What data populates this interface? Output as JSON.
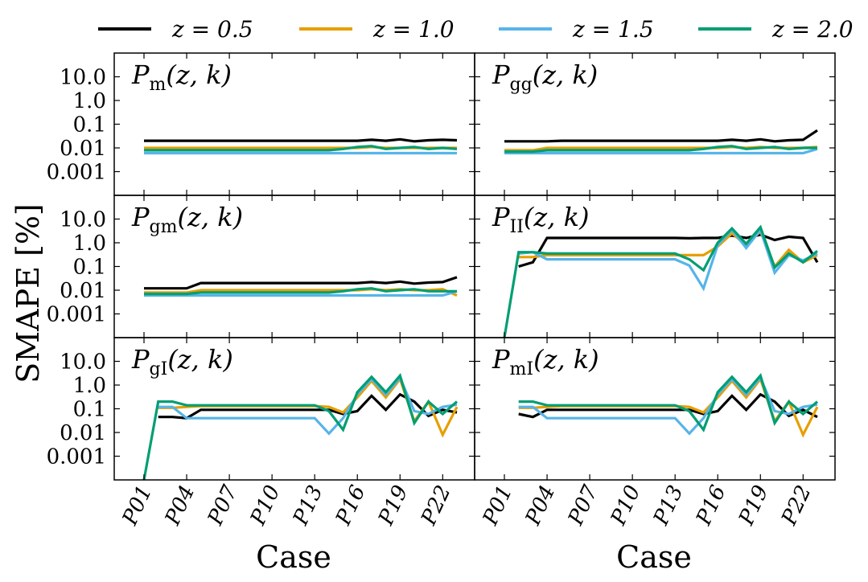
{
  "chart_data": {
    "type": "line",
    "ylabel": "SMAPE [%]",
    "xlabel": "Case",
    "yscale": "log",
    "ylim": [
      0.0001,
      100
    ],
    "yticks": [
      {
        "value": 10,
        "label": "10.0"
      },
      {
        "value": 1,
        "label": "1.0"
      },
      {
        "value": 0.1,
        "label": "0.1"
      },
      {
        "value": 0.01,
        "label": "0.01"
      },
      {
        "value": 0.001,
        "label": "0.001"
      }
    ],
    "cases": [
      "P01",
      "P02",
      "P03",
      "P04",
      "P05",
      "P06",
      "P07",
      "P08",
      "P09",
      "P10",
      "P11",
      "P12",
      "P13",
      "P14",
      "P15",
      "P16",
      "P17",
      "P18",
      "P19",
      "P20",
      "P21",
      "P22",
      "P23"
    ],
    "xtick_labels": [
      "P01",
      "P04",
      "P07",
      "P10",
      "P13",
      "P16",
      "P19",
      "P22"
    ],
    "legend": [
      {
        "label": "z = 0.5",
        "color": "#000000"
      },
      {
        "label": "z = 1.0",
        "color": "#E69F00"
      },
      {
        "label": "z = 1.5",
        "color": "#56B4E9"
      },
      {
        "label": "z = 2.0",
        "color": "#009E73"
      }
    ],
    "panels": [
      {
        "title": "P_m(z, k)",
        "base": "P",
        "sub": "m",
        "series": [
          {
            "name": "z = 0.5",
            "values": [
              0.02,
              0.02,
              0.02,
              0.02,
              0.02,
              0.02,
              0.02,
              0.02,
              0.02,
              0.02,
              0.02,
              0.02,
              0.02,
              0.02,
              0.02,
              0.02,
              0.022,
              0.02,
              0.023,
              0.019,
              0.021,
              0.022,
              0.021
            ]
          },
          {
            "name": "z = 1.0",
            "values": [
              0.01,
              0.01,
              0.01,
              0.01,
              0.01,
              0.01,
              0.01,
              0.01,
              0.01,
              0.01,
              0.01,
              0.01,
              0.01,
              0.01,
              0.01,
              0.01,
              0.011,
              0.01,
              0.01,
              0.01,
              0.01,
              0.01,
              0.01
            ]
          },
          {
            "name": "z = 1.5",
            "values": [
              0.006,
              0.006,
              0.006,
              0.006,
              0.006,
              0.006,
              0.006,
              0.006,
              0.006,
              0.006,
              0.006,
              0.006,
              0.006,
              0.006,
              0.006,
              0.006,
              0.006,
              0.006,
              0.006,
              0.006,
              0.006,
              0.006,
              0.006
            ]
          },
          {
            "name": "z = 2.0",
            "values": [
              0.008,
              0.008,
              0.008,
              0.008,
              0.008,
              0.008,
              0.008,
              0.008,
              0.008,
              0.008,
              0.008,
              0.008,
              0.008,
              0.008,
              0.009,
              0.011,
              0.012,
              0.009,
              0.01,
              0.011,
              0.009,
              0.01,
              0.009
            ]
          }
        ]
      },
      {
        "title": "P_gg(z, k)",
        "base": "P",
        "sub": "gg",
        "series": [
          {
            "name": "z = 0.5",
            "values": [
              0.019,
              0.019,
              0.019,
              0.019,
              0.02,
              0.02,
              0.02,
              0.02,
              0.02,
              0.02,
              0.02,
              0.02,
              0.02,
              0.02,
              0.02,
              0.02,
              0.022,
              0.02,
              0.023,
              0.019,
              0.021,
              0.022,
              0.055
            ]
          },
          {
            "name": "z = 1.0",
            "values": [
              0.008,
              0.008,
              0.008,
              0.01,
              0.01,
              0.01,
              0.01,
              0.01,
              0.01,
              0.01,
              0.01,
              0.01,
              0.01,
              0.01,
              0.01,
              0.01,
              0.011,
              0.01,
              0.011,
              0.01,
              0.01,
              0.01,
              0.011
            ]
          },
          {
            "name": "z = 1.5",
            "values": [
              0.006,
              0.006,
              0.006,
              0.006,
              0.006,
              0.006,
              0.006,
              0.006,
              0.006,
              0.006,
              0.006,
              0.006,
              0.006,
              0.006,
              0.006,
              0.006,
              0.006,
              0.006,
              0.006,
              0.006,
              0.006,
              0.006,
              0.009
            ]
          },
          {
            "name": "z = 2.0",
            "values": [
              0.007,
              0.007,
              0.007,
              0.008,
              0.008,
              0.008,
              0.008,
              0.008,
              0.008,
              0.008,
              0.008,
              0.008,
              0.008,
              0.008,
              0.009,
              0.011,
              0.012,
              0.009,
              0.01,
              0.011,
              0.009,
              0.01,
              0.01
            ]
          }
        ]
      },
      {
        "title": "P_gm(z, k)",
        "base": "P",
        "sub": "gm",
        "series": [
          {
            "name": "z = 0.5",
            "values": [
              0.012,
              0.012,
              0.012,
              0.012,
              0.02,
              0.02,
              0.02,
              0.02,
              0.02,
              0.02,
              0.02,
              0.02,
              0.02,
              0.02,
              0.02,
              0.02,
              0.022,
              0.02,
              0.023,
              0.019,
              0.021,
              0.022,
              0.035
            ]
          },
          {
            "name": "z = 1.0",
            "values": [
              0.008,
              0.008,
              0.008,
              0.008,
              0.01,
              0.01,
              0.01,
              0.01,
              0.01,
              0.01,
              0.01,
              0.01,
              0.01,
              0.01,
              0.01,
              0.01,
              0.011,
              0.01,
              0.011,
              0.01,
              0.01,
              0.011,
              0.006
            ]
          },
          {
            "name": "z = 1.5",
            "values": [
              0.006,
              0.006,
              0.006,
              0.006,
              0.006,
              0.006,
              0.006,
              0.006,
              0.006,
              0.006,
              0.006,
              0.006,
              0.006,
              0.006,
              0.006,
              0.006,
              0.006,
              0.006,
              0.006,
              0.006,
              0.006,
              0.006,
              0.009
            ]
          },
          {
            "name": "z = 2.0",
            "values": [
              0.007,
              0.007,
              0.007,
              0.007,
              0.008,
              0.008,
              0.008,
              0.008,
              0.008,
              0.008,
              0.008,
              0.008,
              0.008,
              0.008,
              0.009,
              0.011,
              0.012,
              0.009,
              0.01,
              0.011,
              0.009,
              0.009,
              0.009
            ]
          }
        ]
      },
      {
        "title": "P_II(z, k)",
        "base": "P",
        "sub": "II",
        "series": [
          {
            "name": "z = 0.5",
            "values": [
              null,
              0.1,
              0.15,
              1.6,
              1.6,
              1.6,
              1.6,
              1.6,
              1.6,
              1.6,
              1.6,
              1.6,
              1.6,
              1.55,
              1.6,
              1.6,
              2.0,
              1.6,
              2.2,
              1.3,
              1.8,
              1.6,
              0.15
            ]
          },
          {
            "name": "z = 1.0",
            "values": [
              null,
              0.25,
              0.25,
              0.3,
              0.3,
              0.3,
              0.3,
              0.3,
              0.3,
              0.3,
              0.3,
              0.3,
              0.3,
              0.3,
              0.3,
              0.7,
              2.5,
              0.8,
              3.0,
              0.1,
              0.5,
              0.15,
              0.3
            ]
          },
          {
            "name": "z = 1.5",
            "values": [
              null,
              0.35,
              0.4,
              0.2,
              0.2,
              0.2,
              0.2,
              0.2,
              0.2,
              0.2,
              0.2,
              0.2,
              0.2,
              0.11,
              0.012,
              0.8,
              3.5,
              0.6,
              3.5,
              0.055,
              0.3,
              0.18,
              0.35
            ]
          },
          {
            "name": "z = 2.0",
            "values": [
              0.0001,
              0.4,
              0.4,
              0.35,
              0.35,
              0.35,
              0.35,
              0.35,
              0.35,
              0.35,
              0.35,
              0.35,
              0.35,
              0.2,
              0.07,
              1.0,
              4.0,
              0.9,
              4.5,
              0.09,
              0.35,
              0.15,
              0.45
            ]
          }
        ]
      },
      {
        "title": "P_gI(z, k)",
        "base": "P",
        "sub": "gI",
        "series": [
          {
            "name": "z = 0.5",
            "values": [
              null,
              0.045,
              0.045,
              0.04,
              0.09,
              0.09,
              0.09,
              0.09,
              0.09,
              0.09,
              0.09,
              0.09,
              0.09,
              0.09,
              0.06,
              0.08,
              0.35,
              0.09,
              0.4,
              0.2,
              0.05,
              0.09,
              0.07
            ]
          },
          {
            "name": "z = 1.0",
            "values": [
              null,
              0.11,
              0.11,
              0.12,
              0.13,
              0.13,
              0.13,
              0.13,
              0.13,
              0.13,
              0.13,
              0.13,
              0.13,
              0.12,
              0.07,
              0.3,
              1.5,
              0.3,
              1.8,
              0.03,
              0.2,
              0.008,
              0.12
            ]
          },
          {
            "name": "z = 1.5",
            "values": [
              null,
              0.12,
              0.12,
              0.04,
              0.04,
              0.04,
              0.04,
              0.04,
              0.04,
              0.04,
              0.04,
              0.04,
              0.04,
              0.009,
              0.04,
              0.4,
              1.8,
              0.4,
              2.0,
              0.08,
              0.06,
              0.12,
              0.15
            ]
          },
          {
            "name": "z = 2.0",
            "values": [
              0.0001,
              0.2,
              0.2,
              0.14,
              0.14,
              0.14,
              0.14,
              0.14,
              0.14,
              0.14,
              0.14,
              0.14,
              0.14,
              0.08,
              0.013,
              0.5,
              2.2,
              0.5,
              2.5,
              0.025,
              0.2,
              0.06,
              0.2
            ]
          }
        ]
      },
      {
        "title": "P_mI(z, k)",
        "base": "P",
        "sub": "mI",
        "series": [
          {
            "name": "z = 0.5",
            "values": [
              null,
              0.06,
              0.045,
              0.09,
              0.09,
              0.09,
              0.09,
              0.09,
              0.09,
              0.09,
              0.09,
              0.09,
              0.09,
              0.09,
              0.06,
              0.08,
              0.35,
              0.09,
              0.4,
              0.2,
              0.05,
              0.09,
              0.045
            ]
          },
          {
            "name": "z = 1.0",
            "values": [
              null,
              0.11,
              0.11,
              0.12,
              0.13,
              0.13,
              0.13,
              0.13,
              0.13,
              0.13,
              0.13,
              0.13,
              0.13,
              0.12,
              0.07,
              0.3,
              1.5,
              0.3,
              1.8,
              0.03,
              0.2,
              0.008,
              0.12
            ]
          },
          {
            "name": "z = 1.5",
            "values": [
              null,
              0.12,
              0.12,
              0.04,
              0.04,
              0.04,
              0.04,
              0.04,
              0.04,
              0.04,
              0.04,
              0.04,
              0.04,
              0.009,
              0.04,
              0.4,
              1.8,
              0.4,
              2.0,
              0.08,
              0.06,
              0.12,
              0.15
            ]
          },
          {
            "name": "z = 2.0",
            "values": [
              null,
              0.2,
              0.2,
              0.14,
              0.14,
              0.14,
              0.14,
              0.14,
              0.14,
              0.14,
              0.14,
              0.14,
              0.14,
              0.08,
              0.013,
              0.5,
              2.2,
              0.5,
              2.5,
              0.025,
              0.2,
              0.06,
              0.2
            ]
          }
        ]
      }
    ]
  }
}
